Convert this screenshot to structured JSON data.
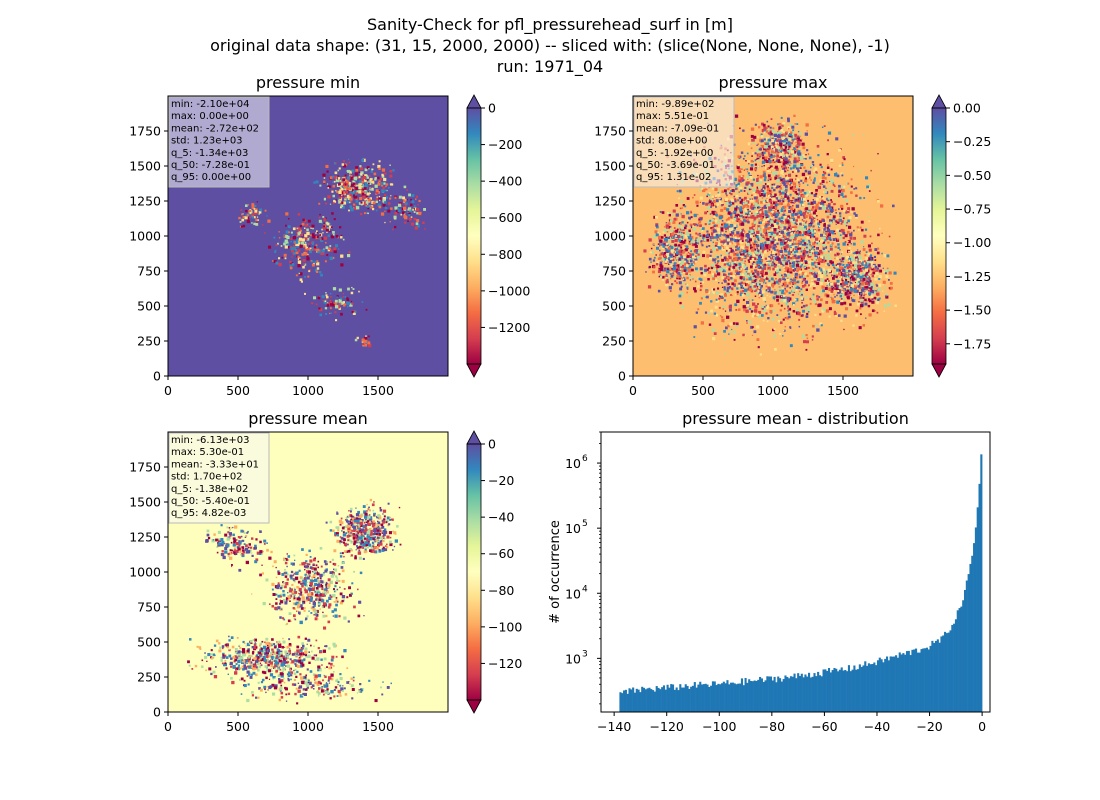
{
  "figure": {
    "title_line1": "Sanity-Check for pfl_pressurehead_surf in [m]",
    "title_line2": "original data shape: (31, 15, 2000, 2000) -- sliced with: (slice(None, None, None), -1)",
    "title_line3": "run: 1971_04"
  },
  "chart_data": [
    {
      "type": "heatmap",
      "title": "pressure min",
      "colormap": "Spectral",
      "xlim": [
        0,
        2000
      ],
      "ylim": [
        0,
        2000
      ],
      "xticks": [
        "0",
        "500",
        "1000",
        "1500"
      ],
      "yticks": [
        "0",
        "250",
        "500",
        "750",
        "1000",
        "1250",
        "1500",
        "1750"
      ],
      "colorbar": {
        "range": [
          -1400,
          0
        ],
        "extend": "both",
        "ticks": [
          "0",
          "−200",
          "−400",
          "−600",
          "−800",
          "−1000",
          "−1200"
        ],
        "tick_values": [
          0,
          -200,
          -400,
          -600,
          -800,
          -1000,
          -1200
        ]
      },
      "stats": [
        "min: -2.10e+04",
        "max: 0.00e+00",
        "mean: -2.72e+02",
        "std: 1.23e+03",
        "q_5: -1.34e+03",
        "q_50: -7.28e-01",
        "q_95: 0.00e+00"
      ],
      "background_color": "#5e4fa2",
      "speckle_colors": [
        "#9e0142",
        "#d53e4f",
        "#f46d43",
        "#fee08b",
        "#abdda4",
        "#3288bd"
      ]
    },
    {
      "type": "heatmap",
      "title": "pressure max",
      "colormap": "Spectral",
      "xlim": [
        0,
        2000
      ],
      "ylim": [
        0,
        2000
      ],
      "xticks": [
        "0",
        "500",
        "1000",
        "1500"
      ],
      "yticks": [
        "0",
        "250",
        "500",
        "750",
        "1000",
        "1250",
        "1500",
        "1750"
      ],
      "colorbar": {
        "range": [
          -1.9,
          0
        ],
        "extend": "both",
        "ticks": [
          "0.00",
          "−0.25",
          "−0.50",
          "−0.75",
          "−1.00",
          "−1.25",
          "−1.50",
          "−1.75"
        ],
        "tick_values": [
          0,
          -0.25,
          -0.5,
          -0.75,
          -1.0,
          -1.25,
          -1.5,
          -1.75
        ]
      },
      "stats": [
        "min: -9.89e+02",
        "max: 5.51e-01",
        "mean: -7.09e-01",
        "std: 8.08e+00",
        "q_5: -1.92e+00",
        "q_50: -3.69e-01",
        "q_95: 1.31e-02"
      ],
      "background_color": "#fdbf6f",
      "speckle_colors": [
        "#9e0142",
        "#d53e4f",
        "#f46d43",
        "#fee08b",
        "#5e4fa2",
        "#3288bd",
        "#abdda4"
      ]
    },
    {
      "type": "heatmap",
      "title": "pressure mean",
      "colormap": "Spectral",
      "xlim": [
        0,
        2000
      ],
      "ylim": [
        0,
        2000
      ],
      "xticks": [
        "0",
        "500",
        "1000",
        "1500"
      ],
      "yticks": [
        "0",
        "250",
        "500",
        "750",
        "1000",
        "1250",
        "1500",
        "1750"
      ],
      "colorbar": {
        "range": [
          -140,
          0
        ],
        "extend": "both",
        "ticks": [
          "0",
          "−20",
          "−40",
          "−60",
          "−80",
          "−100",
          "−120"
        ],
        "tick_values": [
          0,
          -20,
          -40,
          -60,
          -80,
          -100,
          -120
        ]
      },
      "stats": [
        "min: -6.13e+03",
        "max: 5.30e-01",
        "mean: -3.33e+01",
        "std: 1.70e+02",
        "q_5: -1.38e+02",
        "q_50: -5.40e-01",
        "q_95: 4.82e-03"
      ],
      "background_color": "#fefebd",
      "speckle_colors": [
        "#9e0142",
        "#d53e4f",
        "#3288bd",
        "#5e4fa2",
        "#abdda4",
        "#fdae61"
      ]
    },
    {
      "type": "bar",
      "title": "pressure mean - distribution",
      "ylabel": "# of occurrence",
      "xlabel": "",
      "yscale": "log",
      "xlim": [
        -145,
        3
      ],
      "ylim": [
        150,
        3000000
      ],
      "xticks": [
        "−140",
        "−120",
        "−100",
        "−80",
        "−60",
        "−40",
        "−20",
        "0"
      ],
      "xtick_values": [
        -140,
        -120,
        -100,
        -80,
        -60,
        -40,
        -20,
        0
      ],
      "ytick_labels": [
        "10",
        "10",
        "10",
        "10"
      ],
      "ytick_exponents": [
        "3",
        "4",
        "5",
        "6"
      ],
      "ytick_values": [
        1000,
        10000,
        100000,
        1000000
      ],
      "bar_color": "#1f77b4",
      "bin_range": [
        -138,
        0
      ],
      "bin_count": 200,
      "anchors": [
        [
          -138,
          290
        ],
        [
          -130,
          330
        ],
        [
          -120,
          350
        ],
        [
          -110,
          380
        ],
        [
          -100,
          400
        ],
        [
          -90,
          440
        ],
        [
          -80,
          480
        ],
        [
          -70,
          530
        ],
        [
          -60,
          610
        ],
        [
          -50,
          700
        ],
        [
          -40,
          880
        ],
        [
          -30,
          1150
        ],
        [
          -25,
          1300
        ],
        [
          -20,
          1550
        ],
        [
          -15,
          2000
        ],
        [
          -10,
          4000
        ],
        [
          -7,
          9000
        ],
        [
          -5,
          20000
        ],
        [
          -3,
          60000
        ],
        [
          -2,
          150000
        ],
        [
          -1,
          500000
        ],
        [
          -0.5,
          1200000
        ],
        [
          0,
          1800000
        ]
      ]
    }
  ]
}
